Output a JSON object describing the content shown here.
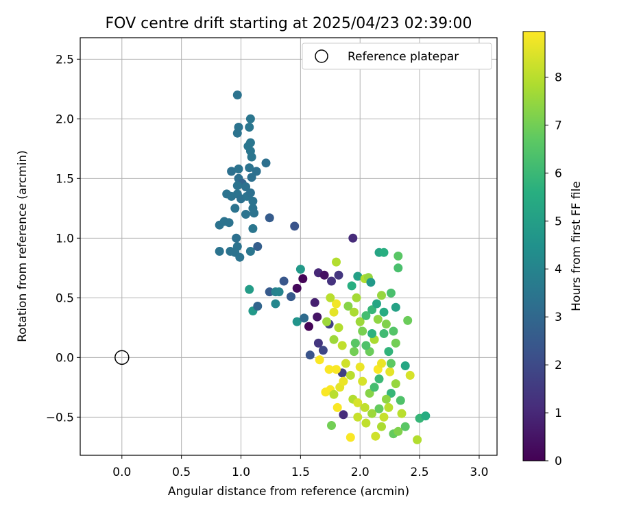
{
  "chart_data": {
    "type": "scatter",
    "title": "FOV centre drift starting at 2025/04/23 02:39:00",
    "xlabel": "Angular distance from reference (arcmin)",
    "ylabel": "Rotation from reference (arcmin)",
    "xlim": [
      -0.35,
      3.15
    ],
    "ylim": [
      -0.82,
      2.68
    ],
    "x_ticks": [
      "0.0",
      "0.5",
      "1.0",
      "1.5",
      "2.0",
      "2.5",
      "3.0"
    ],
    "y_ticks": [
      "−0.5",
      "0.0",
      "0.5",
      "1.0",
      "1.5",
      "2.0",
      "2.5"
    ],
    "x_tick_values": [
      0.0,
      0.5,
      1.0,
      1.5,
      2.0,
      2.5,
      3.0
    ],
    "y_tick_values": [
      -0.5,
      0.0,
      0.5,
      1.0,
      1.5,
      2.0,
      2.5
    ],
    "grid": true,
    "legend_position": "top-right",
    "legend": [
      {
        "label": "Reference platepar",
        "marker": "open-circle"
      }
    ],
    "reference_point": {
      "x": 0.0,
      "y": 0.0
    },
    "colorbar": {
      "label": "Hours from first FF file",
      "colormap": "viridis",
      "range": [
        0,
        8.95
      ],
      "ticks": [
        "0",
        "1",
        "2",
        "3",
        "4",
        "5",
        "6",
        "7",
        "8"
      ],
      "tick_values": [
        0,
        1,
        2,
        3,
        4,
        5,
        6,
        7,
        8
      ]
    },
    "points": [
      [
        0.97,
        2.2,
        3.4
      ],
      [
        1.08,
        2.0,
        3.5
      ],
      [
        0.98,
        1.93,
        3.4
      ],
      [
        1.07,
        1.93,
        3.5
      ],
      [
        0.97,
        1.88,
        3.4
      ],
      [
        1.06,
        1.77,
        3.5
      ],
      [
        1.08,
        1.8,
        3.5
      ],
      [
        1.08,
        1.73,
        3.5
      ],
      [
        1.09,
        1.68,
        3.5
      ],
      [
        0.92,
        1.56,
        3.3
      ],
      [
        0.98,
        1.58,
        3.4
      ],
      [
        1.07,
        1.59,
        3.4
      ],
      [
        1.13,
        1.56,
        3.3
      ],
      [
        1.21,
        1.63,
        3.3
      ],
      [
        0.98,
        1.5,
        3.3
      ],
      [
        1.01,
        1.46,
        2.9
      ],
      [
        1.09,
        1.51,
        3.3
      ],
      [
        0.97,
        1.44,
        3.4
      ],
      [
        1.04,
        1.43,
        3.3
      ],
      [
        0.88,
        1.37,
        3.4
      ],
      [
        0.92,
        1.35,
        3.4
      ],
      [
        0.97,
        1.37,
        3.4
      ],
      [
        1.0,
        1.33,
        3.3
      ],
      [
        1.05,
        1.35,
        3.4
      ],
      [
        1.08,
        1.38,
        3.3
      ],
      [
        1.1,
        1.31,
        3.4
      ],
      [
        0.95,
        1.25,
        3.4
      ],
      [
        1.04,
        1.2,
        3.4
      ],
      [
        1.1,
        1.25,
        3.4
      ],
      [
        1.11,
        1.21,
        3.4
      ],
      [
        0.82,
        1.11,
        3.4
      ],
      [
        0.86,
        1.14,
        3.4
      ],
      [
        0.9,
        1.13,
        3.4
      ],
      [
        1.1,
        1.08,
        3.5
      ],
      [
        1.24,
        1.17,
        2.6
      ],
      [
        1.45,
        1.1,
        2.3
      ],
      [
        0.96,
        1.0,
        3.3
      ],
      [
        0.82,
        0.89,
        3.4
      ],
      [
        0.91,
        0.89,
        3.4
      ],
      [
        0.95,
        0.88,
        3.4
      ],
      [
        0.97,
        0.93,
        3.4
      ],
      [
        0.99,
        0.84,
        3.4
      ],
      [
        1.08,
        0.89,
        3.5
      ],
      [
        1.14,
        0.93,
        2.7
      ],
      [
        1.94,
        1.0,
        1.1
      ],
      [
        1.07,
        0.57,
        4.9
      ],
      [
        1.1,
        0.39,
        4.8
      ],
      [
        1.14,
        0.43,
        2.9
      ],
      [
        1.24,
        0.55,
        2.5
      ],
      [
        1.29,
        0.55,
        3.9
      ],
      [
        1.32,
        0.55,
        4.0
      ],
      [
        1.36,
        0.64,
        2.4
      ],
      [
        1.42,
        0.51,
        2.5
      ],
      [
        1.47,
        0.58,
        0.2
      ],
      [
        1.52,
        0.66,
        0.1
      ],
      [
        1.5,
        0.74,
        4.8
      ],
      [
        1.47,
        0.3,
        4.6
      ],
      [
        1.29,
        0.45,
        4.1
      ],
      [
        1.53,
        0.33,
        3.1
      ],
      [
        1.57,
        0.26,
        0.1
      ],
      [
        1.62,
        0.46,
        0.8
      ],
      [
        1.64,
        0.34,
        0.5
      ],
      [
        1.65,
        0.71,
        1.0
      ],
      [
        1.7,
        0.69,
        0.4
      ],
      [
        1.74,
        0.28,
        1.7
      ],
      [
        1.76,
        0.64,
        1.3
      ],
      [
        1.82,
        0.69,
        1.4
      ],
      [
        1.8,
        0.8,
        7.9
      ],
      [
        1.58,
        0.02,
        2.3
      ],
      [
        1.65,
        0.12,
        1.4
      ],
      [
        1.69,
        0.06,
        1.9
      ],
      [
        1.66,
        -0.02,
        8.9
      ],
      [
        1.71,
        -0.29,
        8.9
      ],
      [
        1.74,
        -0.1,
        8.9
      ],
      [
        1.75,
        -0.27,
        8.9
      ],
      [
        1.76,
        -0.57,
        7.0
      ],
      [
        1.78,
        -0.31,
        8.0
      ],
      [
        1.81,
        -0.42,
        8.9
      ],
      [
        1.83,
        -0.25,
        8.6
      ],
      [
        1.85,
        -0.13,
        1.7
      ],
      [
        1.86,
        -0.48,
        1.1
      ],
      [
        1.92,
        -0.67,
        8.9
      ],
      [
        1.9,
        0.43,
        7.3
      ],
      [
        1.95,
        0.38,
        7.8
      ],
      [
        1.97,
        0.5,
        7.7
      ],
      [
        1.93,
        0.6,
        5.6
      ],
      [
        1.98,
        0.68,
        5.0
      ],
      [
        2.04,
        0.66,
        7.9
      ],
      [
        2.07,
        0.67,
        7.5
      ],
      [
        2.09,
        0.63,
        4.8
      ],
      [
        2.16,
        0.88,
        5.2
      ],
      [
        2.2,
        0.88,
        5.6
      ],
      [
        2.32,
        0.85,
        6.6
      ],
      [
        2.32,
        0.75,
        6.3
      ],
      [
        2.26,
        0.54,
        6.3
      ],
      [
        2.18,
        0.52,
        7.5
      ],
      [
        2.3,
        0.42,
        5.1
      ],
      [
        2.4,
        0.31,
        6.9
      ],
      [
        2.13,
        -0.66,
        8.3
      ],
      [
        2.28,
        -0.64,
        6.8
      ],
      [
        2.48,
        -0.69,
        7.9
      ],
      [
        2.5,
        -0.51,
        5.9
      ],
      [
        2.55,
        -0.49,
        5.5
      ],
      [
        2.38,
        -0.07,
        5.3
      ],
      [
        2.42,
        -0.15,
        8.4
      ],
      [
        2.26,
        -0.3,
        5.9
      ],
      [
        2.35,
        -0.47,
        8.0
      ],
      [
        2.38,
        -0.58,
        6.6
      ],
      [
        2.24,
        -0.42,
        8.0
      ],
      [
        1.98,
        -0.5,
        8.2
      ],
      [
        2.05,
        -0.55,
        8.1
      ],
      [
        2.1,
        -0.47,
        7.6
      ],
      [
        2.16,
        -0.43,
        6.8
      ],
      [
        2.2,
        -0.5,
        8.2
      ],
      [
        1.94,
        -0.35,
        7.9
      ],
      [
        2.02,
        -0.2,
        8.4
      ],
      [
        2.15,
        -0.1,
        8.9
      ],
      [
        2.08,
        0.05,
        6.9
      ],
      [
        2.12,
        0.15,
        7.8
      ],
      [
        2.2,
        0.2,
        6.1
      ],
      [
        1.78,
        0.15,
        7.6
      ],
      [
        1.82,
        0.25,
        7.9
      ],
      [
        1.85,
        0.1,
        8.1
      ],
      [
        1.88,
        -0.05,
        8.3
      ],
      [
        1.95,
        0.05,
        7.0
      ],
      [
        2.0,
        0.3,
        7.6
      ],
      [
        2.05,
        0.35,
        6.2
      ],
      [
        2.1,
        0.4,
        5.9
      ],
      [
        2.15,
        0.32,
        7.4
      ],
      [
        2.22,
        0.28,
        7.2
      ],
      [
        2.28,
        0.22,
        6.5
      ],
      [
        2.3,
        0.12,
        7.0
      ],
      [
        2.18,
        -0.05,
        8.7
      ],
      [
        2.25,
        -0.12,
        8.6
      ],
      [
        2.3,
        -0.22,
        7.5
      ],
      [
        1.8,
        0.45,
        8.8
      ],
      [
        1.78,
        0.38,
        8.6
      ],
      [
        1.96,
        0.12,
        6.6
      ],
      [
        2.02,
        0.22,
        7.1
      ],
      [
        2.08,
        -0.3,
        7.3
      ],
      [
        2.12,
        -0.25,
        6.2
      ],
      [
        2.16,
        -0.18,
        6.0
      ],
      [
        2.22,
        -0.35,
        7.4
      ],
      [
        2.26,
        -0.05,
        6.7
      ],
      [
        2.0,
        -0.08,
        8.7
      ],
      [
        1.92,
        -0.15,
        8.0
      ],
      [
        1.86,
        -0.2,
        8.7
      ],
      [
        1.8,
        -0.1,
        8.9
      ],
      [
        1.75,
        0.5,
        8.0
      ],
      [
        1.72,
        0.3,
        7.6
      ],
      [
        2.05,
        0.1,
        6.4
      ],
      [
        2.1,
        0.2,
        5.7
      ],
      [
        2.14,
        0.45,
        5.3
      ],
      [
        2.2,
        0.38,
        5.5
      ],
      [
        2.24,
        0.05,
        5.8
      ],
      [
        1.98,
        -0.38,
        8.4
      ],
      [
        2.04,
        -0.42,
        8.1
      ],
      [
        2.18,
        -0.58,
        7.8
      ],
      [
        2.32,
        -0.62,
        7.2
      ],
      [
        2.34,
        -0.36,
        6.4
      ]
    ]
  }
}
